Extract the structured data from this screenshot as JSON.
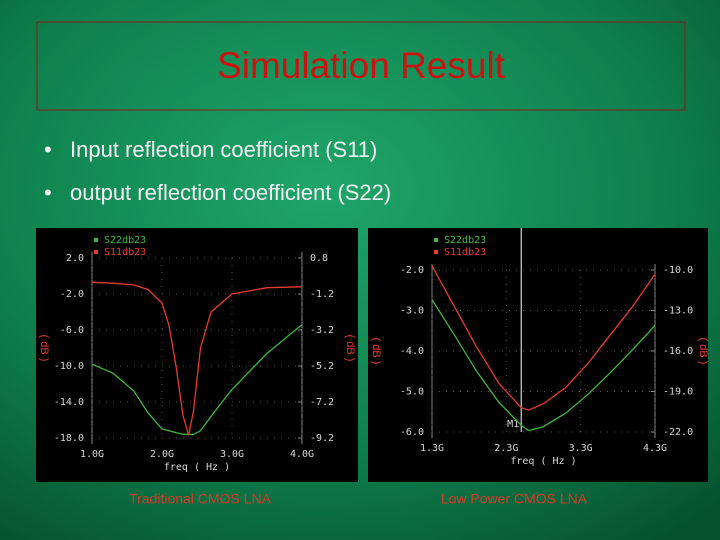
{
  "title": "Simulation Result",
  "bullets": [
    "Input reflection coefficient (S11)",
    "output reflection coefficient (S22)"
  ],
  "chart_data": [
    {
      "type": "line",
      "caption": "Traditional CMOS LNA",
      "xlabel": "freq ( Hz )",
      "ylabel": "( dB )",
      "y2label": "( dB )",
      "grid": true,
      "x": [
        1.0,
        1.3,
        1.6,
        1.8,
        2.0,
        2.1,
        2.2,
        2.3,
        2.38,
        2.45,
        2.55,
        2.7,
        3.0,
        3.5,
        4.0
      ],
      "xlim": [
        1.0,
        4.0
      ],
      "xticks": [
        {
          "value": 1.0,
          "label": "1.0G"
        },
        {
          "value": 2.0,
          "label": "2.0G"
        },
        {
          "value": 3.0,
          "label": "3.0G"
        },
        {
          "value": 4.0,
          "label": "4.0G"
        }
      ],
      "ylim": [
        2.0,
        -18.0
      ],
      "yticks": [
        {
          "value": 2.0,
          "label": "2.0"
        },
        {
          "value": -2.0,
          "label": "-2.0"
        },
        {
          "value": -6.0,
          "label": "-6.0"
        },
        {
          "value": -10.0,
          "label": "-10.0"
        },
        {
          "value": -14.0,
          "label": "-14.0"
        },
        {
          "value": -18.0,
          "label": "-18.0"
        }
      ],
      "y2lim": [
        0.8,
        -9.2
      ],
      "y2ticks": [
        0.8,
        -1.2,
        -3.2,
        -5.2,
        -7.2,
        -9.2
      ],
      "series": [
        {
          "name": "S22db23",
          "color": "#3fb83f",
          "axis": "y2",
          "values": [
            -5.1,
            -5.6,
            -6.6,
            -7.8,
            -8.7,
            -8.8,
            -8.9,
            -9.0,
            -9.0,
            -9.0,
            -8.8,
            -8.0,
            -6.5,
            -4.5,
            -2.9
          ]
        },
        {
          "name": "S11db23",
          "color": "#e83a2e",
          "values": [
            -0.7,
            -0.8,
            -1.0,
            -1.5,
            -3,
            -5.5,
            -10,
            -15.5,
            -17.7,
            -15,
            -8,
            -4,
            -2,
            -1.3,
            -1.2
          ]
        }
      ]
    },
    {
      "type": "line",
      "caption": "Low Power CMOS LNA",
      "xlabel": "freq ( Hz )",
      "ylabel": "( dB )",
      "y2label": "( dB )",
      "grid": true,
      "x": [
        1.3,
        1.6,
        1.9,
        2.2,
        2.5,
        2.6,
        2.8,
        3.1,
        3.4,
        3.7,
        4.0,
        4.3
      ],
      "xlim": [
        1.3,
        4.3
      ],
      "xticks": [
        {
          "value": 1.3,
          "label": "1.3G"
        },
        {
          "value": 2.3,
          "label": "2.3G"
        },
        {
          "value": 3.3,
          "label": "3.3G"
        },
        {
          "value": 4.3,
          "label": "4.3G"
        }
      ],
      "ylim": [
        -2.0,
        -6.0
      ],
      "yticks": [
        {
          "value": -2.0,
          "label": "-2.0"
        },
        {
          "value": -3.0,
          "label": "-3.0"
        },
        {
          "value": -4.0,
          "label": "-4.0"
        },
        {
          "value": -5.0,
          "label": "-5.0"
        },
        {
          "value": -6.0,
          "label": "-6.0"
        }
      ],
      "y2lim": [
        -10.0,
        -22.0
      ],
      "y2ticks": [
        {
          "value": -10.0,
          "label": "-10.0"
        },
        {
          "value": -13.0,
          "label": "-13.0"
        },
        {
          "value": -16.0,
          "label": "-16.0"
        },
        {
          "value": -19.0,
          "label": "-19.0"
        },
        {
          "value": -22.0,
          "label": "-22.0"
        }
      ],
      "markers": [
        {
          "x": 2.5,
          "label": "M1"
        }
      ],
      "series": [
        {
          "name": "S22db23",
          "color": "#3fb83f",
          "axis": "y2",
          "values": [
            -12.2,
            -14.8,
            -17.5,
            -19.8,
            -21.5,
            -21.9,
            -21.6,
            -20.6,
            -19.2,
            -17.6,
            -15.9,
            -14.1
          ]
        },
        {
          "name": "S11db23",
          "color": "#e83a2e",
          "values": [
            -1.9,
            -2.9,
            -3.9,
            -4.8,
            -5.4,
            -5.46,
            -5.3,
            -4.9,
            -4.3,
            -3.6,
            -2.9,
            -2.1
          ]
        }
      ]
    }
  ]
}
